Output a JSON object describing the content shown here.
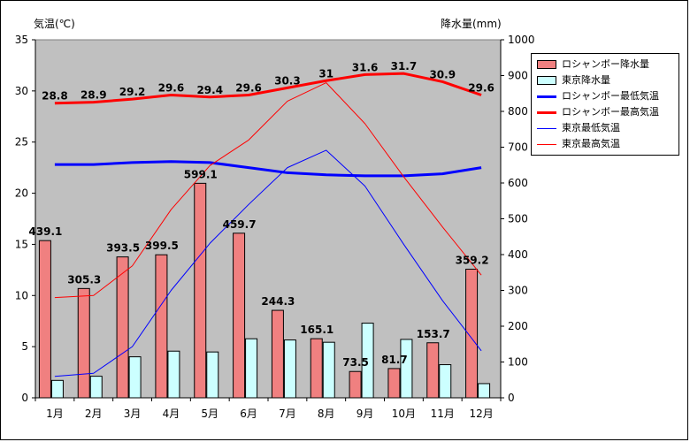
{
  "left_axis_title": "気温(℃)",
  "right_axis_title": "降水量(mm)",
  "chart_data": {
    "type": "bar",
    "categories": [
      "1月",
      "2月",
      "3月",
      "4月",
      "5月",
      "6月",
      "7月",
      "8月",
      "9月",
      "10月",
      "11月",
      "12月"
    ],
    "y_left": {
      "label": "気温(℃)",
      "ylim": [
        0,
        35
      ],
      "ticks": [
        0,
        5,
        10,
        15,
        20,
        25,
        30,
        35
      ]
    },
    "y_right": {
      "label": "降水量(mm)",
      "ylim": [
        0,
        1000
      ],
      "ticks": [
        0,
        100,
        200,
        300,
        400,
        500,
        600,
        700,
        800,
        900,
        1000
      ]
    },
    "grid": false,
    "legend_position": "right",
    "bar_series": [
      {
        "name": "ロシャンボー降水量",
        "color": "#f08080",
        "axis": "right",
        "values": [
          439.1,
          305.3,
          393.5,
          399.5,
          599.1,
          459.7,
          244.3,
          165.1,
          73.5,
          81.7,
          153.7,
          359.2
        ],
        "labels": [
          "439.1",
          "305.3",
          "393.5",
          "399.5",
          "599.1",
          "459.7",
          "244.3",
          "165.1",
          "73.5",
          "81.7",
          "153.7",
          "359.2"
        ]
      },
      {
        "name": "東京降水量",
        "color": "#ccffff",
        "axis": "right",
        "values": [
          48.6,
          60.2,
          114.5,
          130.3,
          128.0,
          164.9,
          161.5,
          155.1,
          208.5,
          163.1,
          92.5,
          39.6
        ]
      }
    ],
    "line_series": [
      {
        "name": "ロシャンボー最低気温",
        "color": "#0000ff",
        "width": 3,
        "axis": "left",
        "values": [
          22.8,
          22.8,
          23.0,
          23.1,
          23.0,
          22.5,
          22.0,
          21.8,
          21.7,
          21.7,
          21.9,
          22.5
        ]
      },
      {
        "name": "ロシャンボー最高気温",
        "color": "#ff0000",
        "width": 3,
        "axis": "left",
        "values": [
          28.8,
          28.9,
          29.2,
          29.6,
          29.4,
          29.6,
          30.3,
          31.0,
          31.6,
          31.7,
          30.9,
          29.6
        ],
        "labels": [
          "28.8",
          "28.9",
          "29.2",
          "29.6",
          "29.4",
          "29.6",
          "30.3",
          "31",
          "31.6",
          "31.7",
          "30.9",
          "29.6"
        ]
      },
      {
        "name": "東京最低気温",
        "color": "#0000ff",
        "width": 1,
        "axis": "left",
        "values": [
          2.1,
          2.4,
          5.0,
          10.5,
          15.1,
          18.9,
          22.5,
          24.2,
          20.7,
          15.0,
          9.5,
          4.6
        ]
      },
      {
        "name": "東京最高気温",
        "color": "#ff0000",
        "width": 1,
        "axis": "left",
        "values": [
          9.8,
          10.0,
          12.9,
          18.4,
          22.7,
          25.2,
          29.0,
          30.8,
          26.8,
          21.6,
          16.7,
          12.0
        ]
      }
    ]
  },
  "legend": {
    "items": [
      {
        "label": "ロシャンボー降水量",
        "kind": "box",
        "color": "#f08080"
      },
      {
        "label": "東京降水量",
        "kind": "box",
        "color": "#ccffff"
      },
      {
        "label": "ロシャンボー最低気温",
        "kind": "line",
        "color": "#0000ff",
        "width": 3
      },
      {
        "label": "ロシャンボー最高気温",
        "kind": "line",
        "color": "#ff0000",
        "width": 3
      },
      {
        "label": "東京最低気温",
        "kind": "line",
        "color": "#0000ff",
        "width": 1
      },
      {
        "label": "東京最高気温",
        "kind": "line",
        "color": "#ff0000",
        "width": 1
      }
    ]
  },
  "colors": {
    "plot_background": "#c0c0c0"
  }
}
